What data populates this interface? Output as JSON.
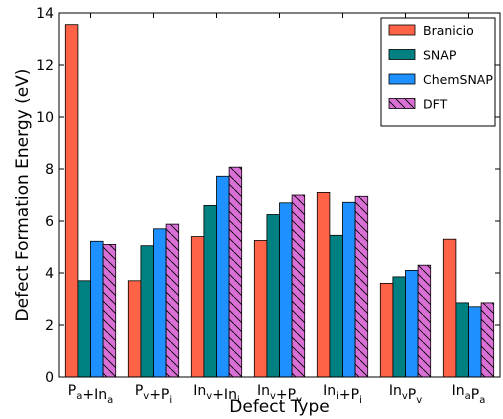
{
  "chart_data": {
    "type": "bar",
    "title": "",
    "xlabel": "Defect Type",
    "ylabel": "Defect Formation Energy (eV)",
    "ylim": [
      0,
      14
    ],
    "yticks": [
      0,
      2,
      4,
      6,
      8,
      10,
      12,
      14
    ],
    "grid": false,
    "legend_position": "top-right",
    "categories": [
      {
        "label": "Pa+Ina",
        "parts": [
          {
            "main": "P",
            "sub": "a"
          },
          {
            "main": "+In",
            "sub": "a"
          }
        ]
      },
      {
        "label": "Pv+Pi",
        "parts": [
          {
            "main": "P",
            "sub": "v"
          },
          {
            "main": "+P",
            "sub": "i"
          }
        ]
      },
      {
        "label": "Inv+Ini",
        "parts": [
          {
            "main": "In",
            "sub": "v"
          },
          {
            "main": "+In",
            "sub": "i"
          }
        ]
      },
      {
        "label": "Inv+Pv",
        "parts": [
          {
            "main": "In",
            "sub": "v"
          },
          {
            "main": "+P",
            "sub": "v"
          }
        ]
      },
      {
        "label": "Ini+Pi",
        "parts": [
          {
            "main": "In",
            "sub": "i"
          },
          {
            "main": "+P",
            "sub": "i"
          }
        ]
      },
      {
        "label": "InvPv",
        "parts": [
          {
            "main": "In",
            "sub": "v"
          },
          {
            "main": "P",
            "sub": "v"
          }
        ]
      },
      {
        "label": "InaPa",
        "parts": [
          {
            "main": "In",
            "sub": "a"
          },
          {
            "main": "P",
            "sub": "a"
          }
        ]
      }
    ],
    "series": [
      {
        "name": "Branicio",
        "color": "#ff6347",
        "hatch": false,
        "values": [
          13.55,
          3.7,
          5.4,
          5.25,
          7.1,
          3.6,
          5.3
        ]
      },
      {
        "name": "SNAP",
        "color": "#008080",
        "hatch": false,
        "values": [
          3.7,
          5.05,
          6.6,
          6.25,
          5.45,
          3.85,
          2.85
        ]
      },
      {
        "name": "ChemSNAP",
        "color": "#1e90ff",
        "hatch": false,
        "values": [
          5.22,
          5.7,
          7.72,
          6.7,
          6.72,
          4.1,
          2.7
        ]
      },
      {
        "name": "DFT",
        "color": "#da70d6",
        "hatch": true,
        "values": [
          5.1,
          5.88,
          8.07,
          7.0,
          6.95,
          4.3,
          2.85
        ]
      }
    ]
  }
}
